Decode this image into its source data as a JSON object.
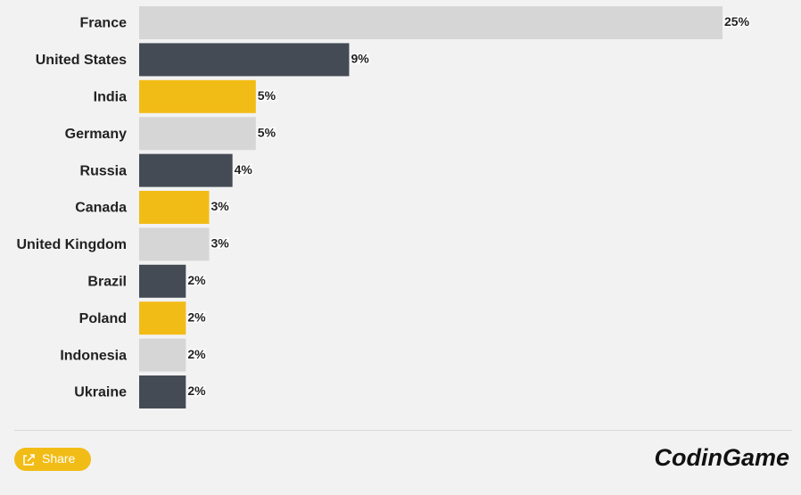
{
  "chart_data": {
    "type": "bar",
    "orientation": "horizontal",
    "categories": [
      "France",
      "United States",
      "India",
      "Germany",
      "Russia",
      "Canada",
      "United Kingdom",
      "Brazil",
      "Poland",
      "Indonesia",
      "Ukraine"
    ],
    "values": [
      25,
      9,
      5,
      5,
      4,
      3,
      3,
      2,
      2,
      2,
      2
    ],
    "value_labels": [
      "25%",
      "9%",
      "5%",
      "5%",
      "4%",
      "3%",
      "3%",
      "2%",
      "2%",
      "2%",
      "2%"
    ],
    "colors": [
      "#d6d6d6",
      "#444b55",
      "#f2bc16",
      "#d6d6d6",
      "#444b55",
      "#f2bc16",
      "#d6d6d6",
      "#444b55",
      "#f2bc16",
      "#d6d6d6",
      "#444b55"
    ]
  },
  "footer": {
    "share_button": "Share",
    "logo": "CodinGame"
  }
}
